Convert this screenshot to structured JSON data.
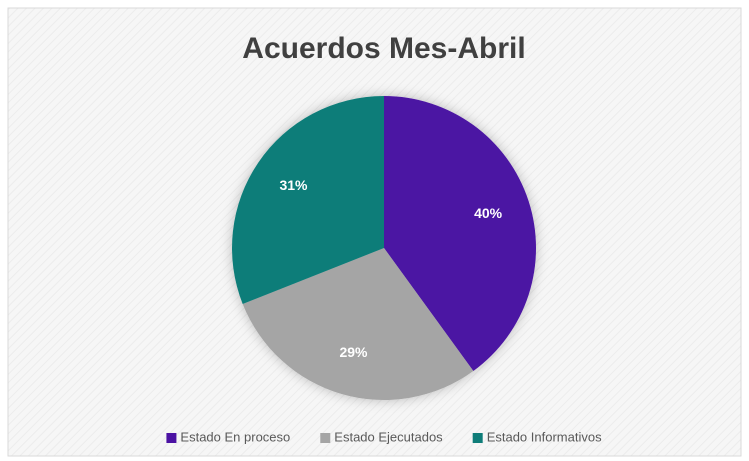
{
  "chart_data": {
    "type": "pie",
    "title": "Acuerdos Mes-Abril",
    "categories": [
      "Estado En proceso",
      "Estado Ejecutados",
      "Estado Informativos"
    ],
    "values": [
      40,
      29,
      31
    ],
    "value_labels": [
      "40%",
      "29%",
      "31%"
    ],
    "colors": [
      "#4b12a3",
      "#a5a5a5",
      "#0f7d79"
    ],
    "legend": "bottom"
  }
}
